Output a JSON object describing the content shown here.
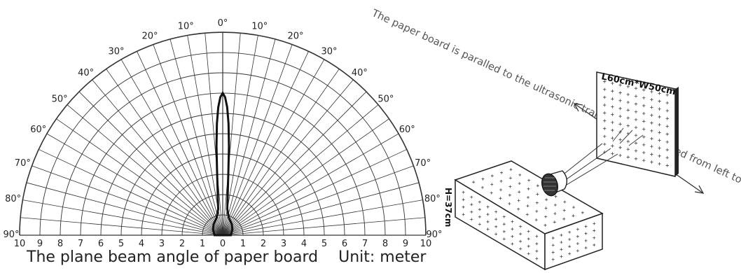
{
  "polar_chart": {
    "angle_labels": [
      "0°",
      "10°",
      "20°",
      "30°",
      "40°",
      "50°",
      "60°",
      "70°",
      "80°",
      "90°"
    ],
    "distance_labels": [
      "10",
      "9",
      "8",
      "7",
      "6",
      "5",
      "4",
      "3",
      "2",
      "1",
      "0"
    ],
    "beam_pattern": {
      "note_values_in_data_units": true,
      "points": [
        {
          "angle": 0,
          "distance": 7.0
        },
        {
          "angle": 1,
          "distance": 6.8
        },
        {
          "angle": 2,
          "distance": 6.3
        },
        {
          "angle": 3,
          "distance": 5.5
        },
        {
          "angle": 4,
          "distance": 4.4
        },
        {
          "angle": 5,
          "distance": 3.2
        },
        {
          "angle": 7,
          "distance": 2.0
        },
        {
          "angle": 10,
          "distance": 1.3
        },
        {
          "angle": 20,
          "distance": 0.9
        },
        {
          "angle": 40,
          "distance": 0.7
        },
        {
          "angle": 60,
          "distance": 0.55
        },
        {
          "angle": 90,
          "distance": 0.4
        }
      ]
    }
  },
  "caption": {
    "title": "The plane beam angle of paper board",
    "unit": "Unit: meter"
  },
  "setup": {
    "board_label": "L60cm*W50cm",
    "height_label": "H=37cm",
    "motion_note": "The paper board is paralled to the  ultrasonic transducer and moved from left to right"
  }
}
